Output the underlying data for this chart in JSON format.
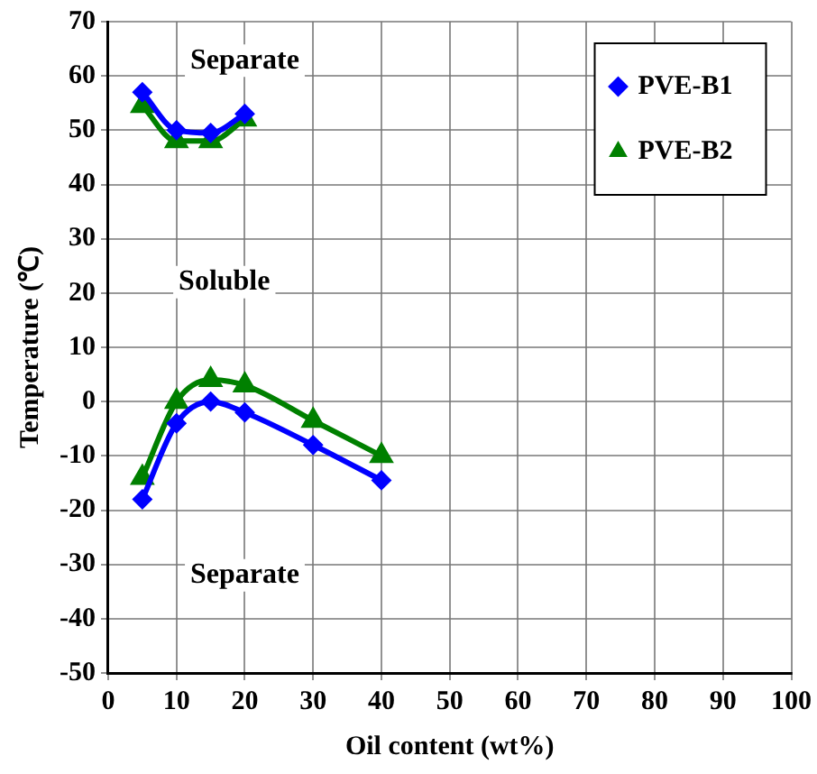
{
  "chart_data": {
    "type": "line",
    "xlabel": "Oil content (wt%)",
    "ylabel": "Temperature (℃)",
    "xlim": [
      0,
      100
    ],
    "xticks": [
      0,
      10,
      20,
      30,
      40,
      50,
      60,
      70,
      80,
      90,
      100
    ],
    "ylim": [
      -50,
      70
    ],
    "yticks": [
      -50,
      -40,
      -30,
      -20,
      -10,
      0,
      10,
      20,
      30,
      40,
      50,
      60,
      70
    ],
    "grid": true,
    "legend": "top right",
    "series": [
      {
        "name": "PVE-B1",
        "color": "#0000ff",
        "marker": "diamond",
        "x": [
          5,
          10,
          15,
          20
        ],
        "values": [
          57,
          50,
          49.5,
          53
        ]
      },
      {
        "name": "PVE-B2",
        "color": "#008000",
        "marker": "triangle",
        "x": [
          5,
          10,
          15,
          20
        ],
        "values": [
          54.5,
          48,
          48,
          52
        ]
      },
      {
        "color": "#0000ff",
        "marker": "diamond",
        "x": [
          5,
          10,
          15,
          20,
          30,
          40
        ],
        "values": [
          -18,
          -4,
          0,
          -2,
          -8,
          -14.5
        ]
      },
      {
        "color": "#008000",
        "marker": "triangle",
        "x": [
          5,
          10,
          15,
          20,
          30,
          40
        ],
        "values": [
          -14,
          0,
          4,
          3,
          -3.5,
          -10
        ]
      }
    ],
    "annotations": [
      "Separate",
      "Soluble",
      "Separate"
    ]
  }
}
